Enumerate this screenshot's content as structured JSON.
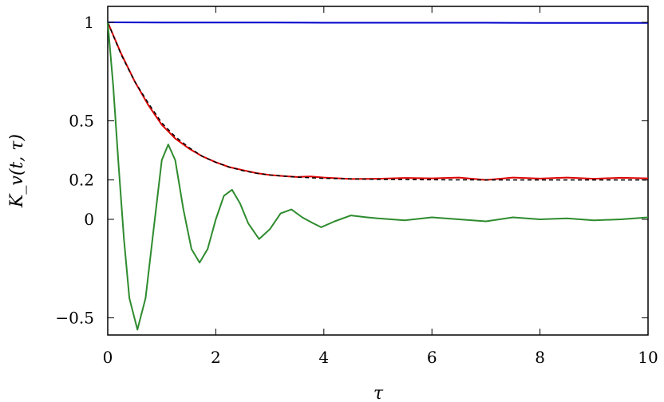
{
  "chart_data": {
    "type": "line",
    "xlabel": "τ",
    "ylabel": "K_v(t, τ)",
    "xlim": [
      0,
      10
    ],
    "ylim": [
      -0.55,
      1.05
    ],
    "xticks": [
      0,
      2,
      4,
      6,
      8,
      10
    ],
    "xtick_labels": [
      "0",
      "2",
      "4",
      "6",
      "8",
      "10"
    ],
    "yticks": [
      -0.5,
      0,
      0.2,
      0.5,
      1
    ],
    "ytick_labels": [
      "−0.5",
      "0",
      "0.2",
      "0.5",
      "1"
    ],
    "grid": false,
    "series": [
      {
        "color": "#0000cc",
        "style": "solid",
        "x": [
          0,
          1,
          2,
          3,
          4,
          5,
          6,
          7,
          8,
          9,
          10
        ],
        "y": [
          1.0,
          0.999,
          0.999,
          0.999,
          0.998,
          0.998,
          0.998,
          0.998,
          0.997,
          0.997,
          0.997
        ]
      },
      {
        "color": "#dd0000",
        "style": "solid",
        "x": [
          0,
          0.25,
          0.5,
          0.75,
          1.0,
          1.25,
          1.5,
          1.75,
          2.0,
          2.25,
          2.5,
          2.75,
          3.0,
          3.25,
          3.5,
          3.75,
          4.0,
          4.5,
          5.0,
          5.5,
          6.0,
          6.5,
          7.0,
          7.5,
          8.0,
          8.5,
          9.0,
          9.5,
          10.0
        ],
        "y": [
          1.0,
          0.84,
          0.7,
          0.58,
          0.48,
          0.41,
          0.36,
          0.32,
          0.29,
          0.265,
          0.25,
          0.235,
          0.225,
          0.22,
          0.215,
          0.218,
          0.212,
          0.205,
          0.206,
          0.21,
          0.208,
          0.212,
          0.2,
          0.212,
          0.207,
          0.212,
          0.206,
          0.211,
          0.208
        ]
      },
      {
        "color": "#000000",
        "style": "dashed",
        "x": [
          0,
          0.25,
          0.5,
          0.75,
          1.0,
          1.25,
          1.5,
          1.75,
          2.0,
          2.25,
          2.5,
          2.75,
          3.0,
          3.5,
          4.0,
          5.0,
          6.0,
          7.0,
          8.0,
          9.0,
          10.0
        ],
        "y": [
          1.0,
          0.835,
          0.7,
          0.59,
          0.49,
          0.42,
          0.365,
          0.32,
          0.29,
          0.265,
          0.247,
          0.234,
          0.225,
          0.214,
          0.208,
          0.203,
          0.201,
          0.2,
          0.2,
          0.2,
          0.2
        ]
      },
      {
        "color": "#2e8b2e",
        "style": "solid",
        "x": [
          0,
          0.1,
          0.2,
          0.3,
          0.4,
          0.55,
          0.7,
          0.85,
          1.0,
          1.12,
          1.25,
          1.4,
          1.55,
          1.7,
          1.85,
          2.0,
          2.15,
          2.3,
          2.45,
          2.6,
          2.8,
          3.0,
          3.2,
          3.4,
          3.6,
          3.8,
          3.95,
          4.2,
          4.5,
          4.8,
          5.0,
          5.5,
          6.0,
          6.5,
          7.0,
          7.5,
          8.0,
          8.5,
          9.0,
          9.5,
          10.0
        ],
        "y": [
          1.0,
          0.68,
          0.28,
          -0.1,
          -0.4,
          -0.56,
          -0.4,
          -0.05,
          0.3,
          0.38,
          0.3,
          0.05,
          -0.15,
          -0.22,
          -0.15,
          0.0,
          0.12,
          0.15,
          0.08,
          -0.02,
          -0.1,
          -0.05,
          0.03,
          0.05,
          0.01,
          -0.02,
          -0.04,
          -0.01,
          0.02,
          0.01,
          0.005,
          -0.005,
          0.01,
          0.0,
          -0.01,
          0.01,
          0.0,
          0.005,
          -0.005,
          0.0,
          0.01
        ]
      }
    ]
  }
}
